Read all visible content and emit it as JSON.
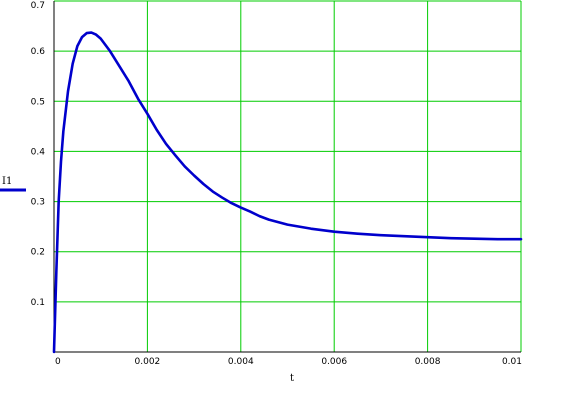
{
  "chart_data": {
    "type": "line",
    "xlabel": "t",
    "legend_placement": "left",
    "grid": true,
    "grid_color": "#00cc00",
    "axis_color": "#000000",
    "xlim": [
      0,
      0.01
    ],
    "ylim": [
      0,
      0.7
    ],
    "x_ticks": [
      0,
      0.002,
      0.004,
      0.006,
      0.008,
      0.01
    ],
    "x_tick_labels": [
      "0",
      "0.002",
      "0.004",
      "0.006",
      "0.008",
      "0.01"
    ],
    "y_ticks": [
      0,
      0.1,
      0.2,
      0.3,
      0.4,
      0.5,
      0.6,
      0.7
    ],
    "y_tick_labels": [
      "",
      "0.1",
      "0.2",
      "0.3",
      "0.4",
      "0.5",
      "0.6",
      "0.7"
    ],
    "series": [
      {
        "name": "I1",
        "color": "#0000cc",
        "x": [
          0,
          5e-05,
          0.0001,
          0.00015,
          0.0002,
          0.0003,
          0.0004,
          0.0005,
          0.0006,
          0.0007,
          0.0008,
          0.0009,
          0.001,
          0.0012,
          0.0014,
          0.0016,
          0.0018,
          0.002,
          0.0022,
          0.0024,
          0.0026,
          0.0028,
          0.003,
          0.0032,
          0.0034,
          0.0036,
          0.0038,
          0.004,
          0.0042,
          0.0044,
          0.0046,
          0.0048,
          0.005,
          0.0055,
          0.006,
          0.0065,
          0.007,
          0.0075,
          0.008,
          0.0085,
          0.009,
          0.0095,
          0.01
        ],
        "y": [
          0,
          0.16,
          0.3,
          0.38,
          0.44,
          0.52,
          0.575,
          0.61,
          0.628,
          0.636,
          0.637,
          0.633,
          0.625,
          0.6,
          0.57,
          0.54,
          0.505,
          0.475,
          0.443,
          0.415,
          0.392,
          0.37,
          0.352,
          0.335,
          0.32,
          0.308,
          0.297,
          0.288,
          0.28,
          0.271,
          0.264,
          0.259,
          0.254,
          0.246,
          0.24,
          0.236,
          0.233,
          0.231,
          0.229,
          0.227,
          0.226,
          0.225,
          0.225
        ]
      }
    ]
  }
}
